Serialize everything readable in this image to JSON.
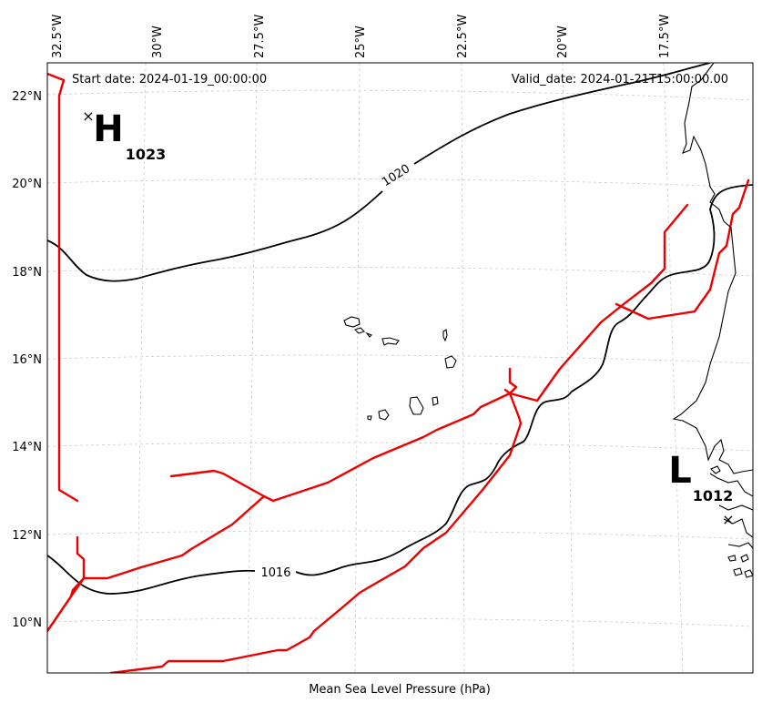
{
  "header": {
    "start_date": "Start date: 2024-01-19_00:00:00",
    "valid_date": "Valid_date: 2024-01-21T15:00:00.00"
  },
  "footer": {
    "caption": "Mean Sea Level Pressure (hPa)"
  },
  "axes": {
    "lon_ticks": [
      "32.5°W",
      "30°W",
      "27.5°W",
      "25°W",
      "22.5°W",
      "20°W",
      "17.5°W"
    ],
    "lat_ticks": [
      "22°N",
      "20°N",
      "18°N",
      "16°N",
      "14°N",
      "12°N",
      "10°N"
    ]
  },
  "isobars": {
    "label_1020": "1020",
    "label_1016": "1016"
  },
  "pressure_centers": {
    "high": {
      "letter": "H",
      "value": "1023",
      "marker": "×"
    },
    "low": {
      "letter": "L",
      "value": "1012",
      "marker": "×"
    }
  },
  "colors": {
    "route": "#ee0000",
    "isobar": "#000000",
    "grid": "#cccccc"
  }
}
